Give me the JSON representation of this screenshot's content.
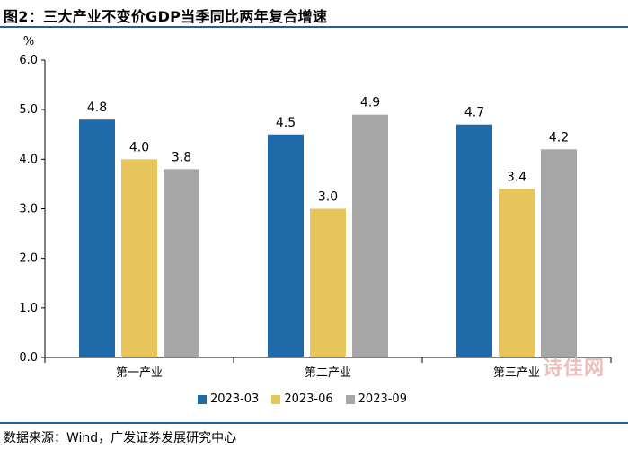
{
  "header": {
    "title": "图2：三大产业不变价GDP当季同比两年复合增速"
  },
  "footer": {
    "source": "数据来源：Wind，广发证券发展研究中心",
    "watermark": "诗佳网"
  },
  "colors": {
    "rule": "#1f5f9a",
    "series": [
      "#1f6aa8",
      "#e8c55a",
      "#a6a6a6"
    ]
  },
  "chart_data": {
    "type": "bar",
    "title": "",
    "ylabel": "%",
    "xlabel": "",
    "ylim": [
      0,
      6
    ],
    "yticks": [
      "0.0",
      "1.0",
      "2.0",
      "3.0",
      "4.0",
      "5.0",
      "6.0"
    ],
    "categories": [
      "第一产业",
      "第二产业",
      "第三产业"
    ],
    "series": [
      {
        "name": "2023-03",
        "values": [
          4.8,
          4.5,
          4.7
        ]
      },
      {
        "name": "2023-06",
        "values": [
          4.0,
          3.0,
          3.4
        ]
      },
      {
        "name": "2023-09",
        "values": [
          3.8,
          4.9,
          4.2
        ]
      }
    ],
    "data_labels": [
      [
        "4.8",
        "4.5",
        "4.7"
      ],
      [
        "4.0",
        "3.0",
        "3.4"
      ],
      [
        "3.8",
        "4.9",
        "4.2"
      ]
    ],
    "legend_position": "bottom",
    "grid": false
  }
}
